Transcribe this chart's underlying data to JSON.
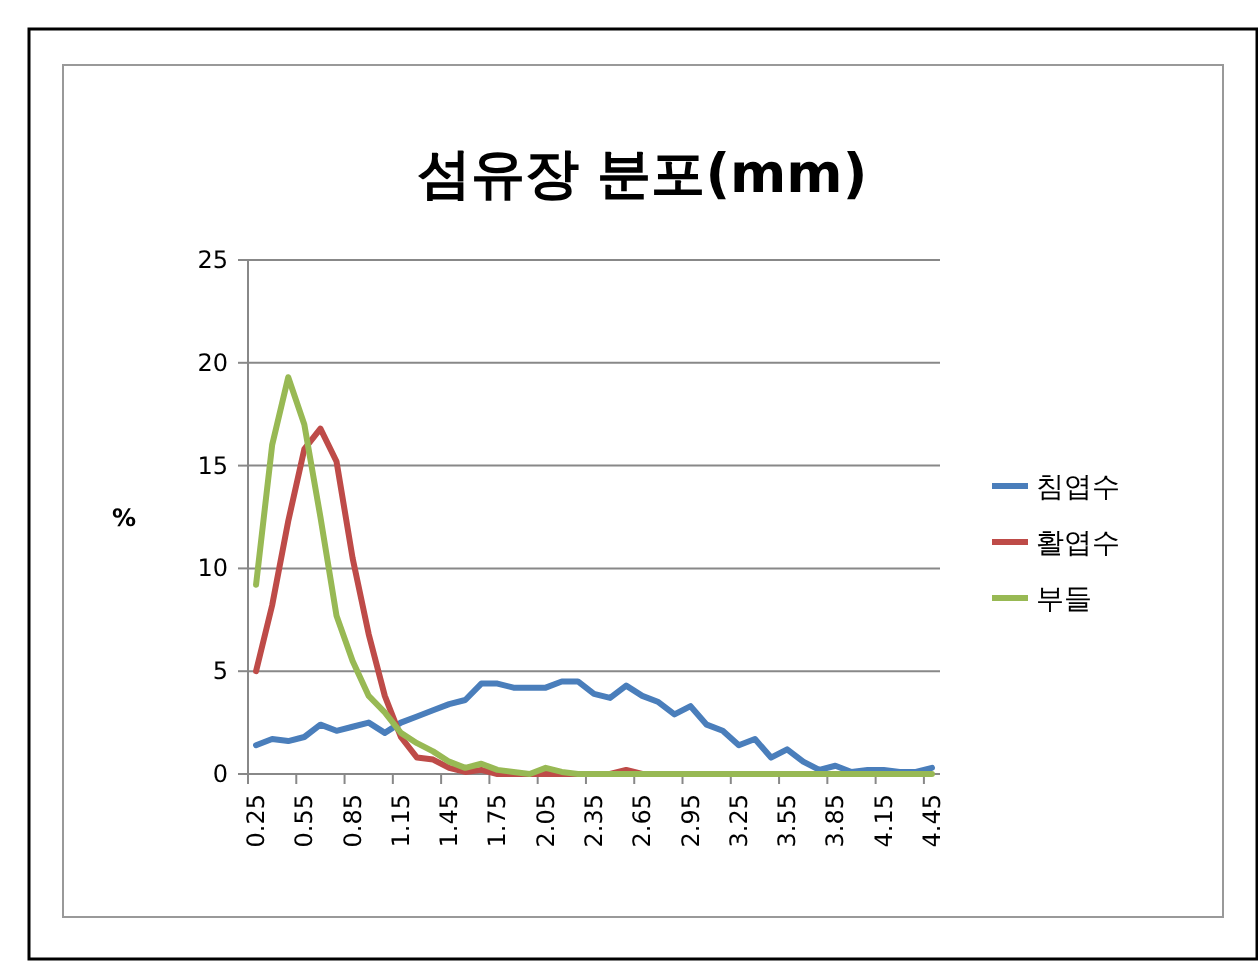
{
  "chart_data": {
    "type": "line",
    "title": "섬유장 분포(mm)",
    "ylabel": "%",
    "categories": [
      "0.25",
      null,
      null,
      "0.55",
      null,
      null,
      "0.85",
      null,
      null,
      "1.15",
      null,
      null,
      "1.45",
      null,
      null,
      "1.75",
      null,
      null,
      "2.05",
      null,
      null,
      "2.35",
      null,
      null,
      "2.65",
      null,
      null,
      "2.95",
      null,
      null,
      "3.25",
      null,
      null,
      "3.55",
      null,
      null,
      "3.85",
      null,
      null,
      "4.15",
      null,
      null,
      "4.45"
    ],
    "series": [
      {
        "name": "침엽수",
        "color": "#4a7ebb",
        "values": [
          1.4,
          1.7,
          1.6,
          1.8,
          2.4,
          2.1,
          2.3,
          2.5,
          2.0,
          2.5,
          2.8,
          3.1,
          3.4,
          3.6,
          4.4,
          4.4,
          4.2,
          4.2,
          4.2,
          4.5,
          4.5,
          3.9,
          3.7,
          4.3,
          3.8,
          3.5,
          2.9,
          3.3,
          2.4,
          2.1,
          1.4,
          1.7,
          0.8,
          1.2,
          0.6,
          0.2,
          0.4,
          0.1,
          0.2,
          0.2,
          0.1,
          0.1,
          0.3
        ]
      },
      {
        "name": "활엽수",
        "color": "#be4b48",
        "values": [
          5.0,
          8.2,
          12.3,
          15.8,
          16.8,
          15.2,
          10.5,
          6.8,
          3.8,
          1.8,
          0.8,
          0.7,
          0.3,
          0.1,
          0.2,
          0,
          0,
          0,
          0,
          0,
          0,
          0,
          0,
          0.2,
          0,
          0,
          null,
          null,
          null,
          null,
          null,
          null,
          null,
          null,
          null,
          null,
          null,
          null,
          null,
          null,
          null,
          null,
          null
        ]
      },
      {
        "name": "부들",
        "color": "#98b954",
        "values": [
          9.2,
          16.0,
          19.3,
          17.0,
          12.5,
          7.7,
          5.5,
          3.8,
          3.0,
          2.0,
          1.5,
          1.1,
          0.6,
          0.3,
          0.5,
          0.2,
          0.1,
          0,
          0.3,
          0.1,
          0,
          0,
          0,
          0,
          0,
          0,
          0,
          0,
          0,
          0,
          0,
          0,
          0,
          0,
          0,
          0,
          0,
          0,
          0,
          0,
          0,
          0,
          0
        ]
      }
    ],
    "ylim": [
      0,
      25
    ],
    "yticks": [
      0,
      5,
      10,
      15,
      20,
      25
    ],
    "grid": "y",
    "legend": "right",
    "marker": "none",
    "line_style": "solid"
  }
}
